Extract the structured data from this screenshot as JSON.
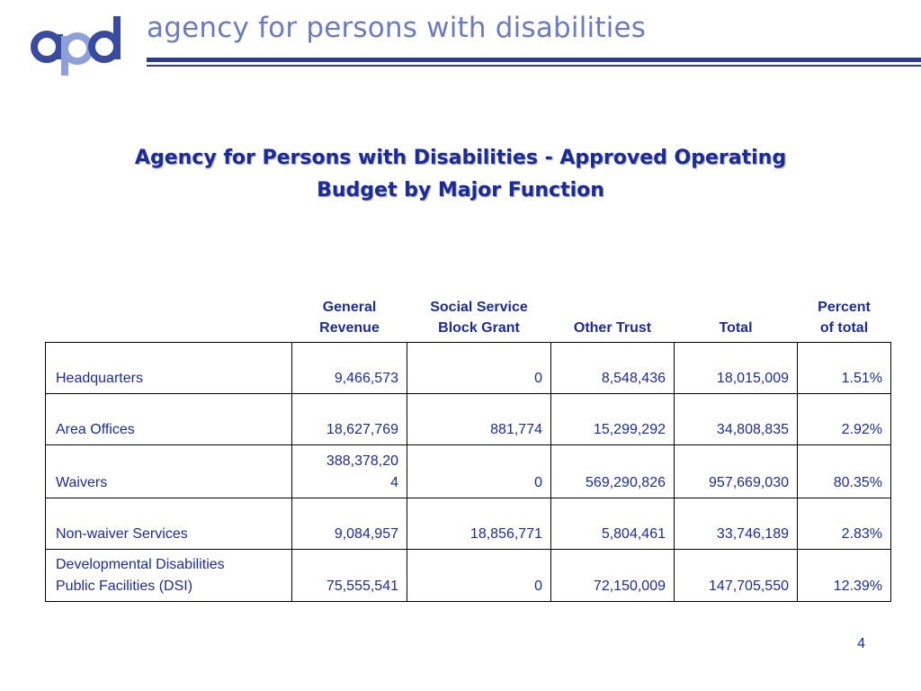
{
  "header": {
    "logo_text": "apd",
    "agency_name": "agency for persons with disabilities"
  },
  "title": {
    "line1": "Agency for Persons with Disabilities - Approved Operating",
    "line2": "Budget by Major Function"
  },
  "table": {
    "columns": [
      {
        "line1": "",
        "line2": ""
      },
      {
        "line1": "General",
        "line2": "Revenue"
      },
      {
        "line1": "Social Service",
        "line2": "Block Grant"
      },
      {
        "line1": "",
        "line2": "Other Trust"
      },
      {
        "line1": "",
        "line2": "Total"
      },
      {
        "line1": "Percent",
        "line2": "of total"
      }
    ],
    "rows": [
      {
        "label": [
          "Headquarters"
        ],
        "general_revenue": [
          "9,466,573"
        ],
        "ssbg": "0",
        "other_trust": "8,548,436",
        "total": "18,015,009",
        "percent": "1.51%"
      },
      {
        "label": [
          "Area Offices"
        ],
        "general_revenue": [
          "18,627,769"
        ],
        "ssbg": "881,774",
        "other_trust": "15,299,292",
        "total": "34,808,835",
        "percent": "2.92%"
      },
      {
        "label": [
          "Waivers"
        ],
        "general_revenue": [
          "388,378,20",
          "4"
        ],
        "ssbg": "0",
        "other_trust": "569,290,826",
        "total": "957,669,030",
        "percent": "80.35%"
      },
      {
        "label": [
          "Non-waiver Services"
        ],
        "general_revenue": [
          "9,084,957"
        ],
        "ssbg": "18,856,771",
        "other_trust": "5,804,461",
        "total": "33,746,189",
        "percent": "2.83%"
      },
      {
        "label": [
          "Developmental Disabilities",
          "Public Facilities (DSI)"
        ],
        "general_revenue": [
          "75,555,541"
        ],
        "ssbg": "0",
        "other_trust": "72,150,009",
        "total": "147,705,550",
        "percent": "12.39%"
      }
    ]
  },
  "page_number": "4",
  "colors": {
    "title": "#1d2b96",
    "agency_name": "#6c7bbd",
    "rule": "#2e3b8c",
    "logo_circle_outer": "#3a4a9c",
    "logo_circle_inner": "#8fa0d8"
  }
}
